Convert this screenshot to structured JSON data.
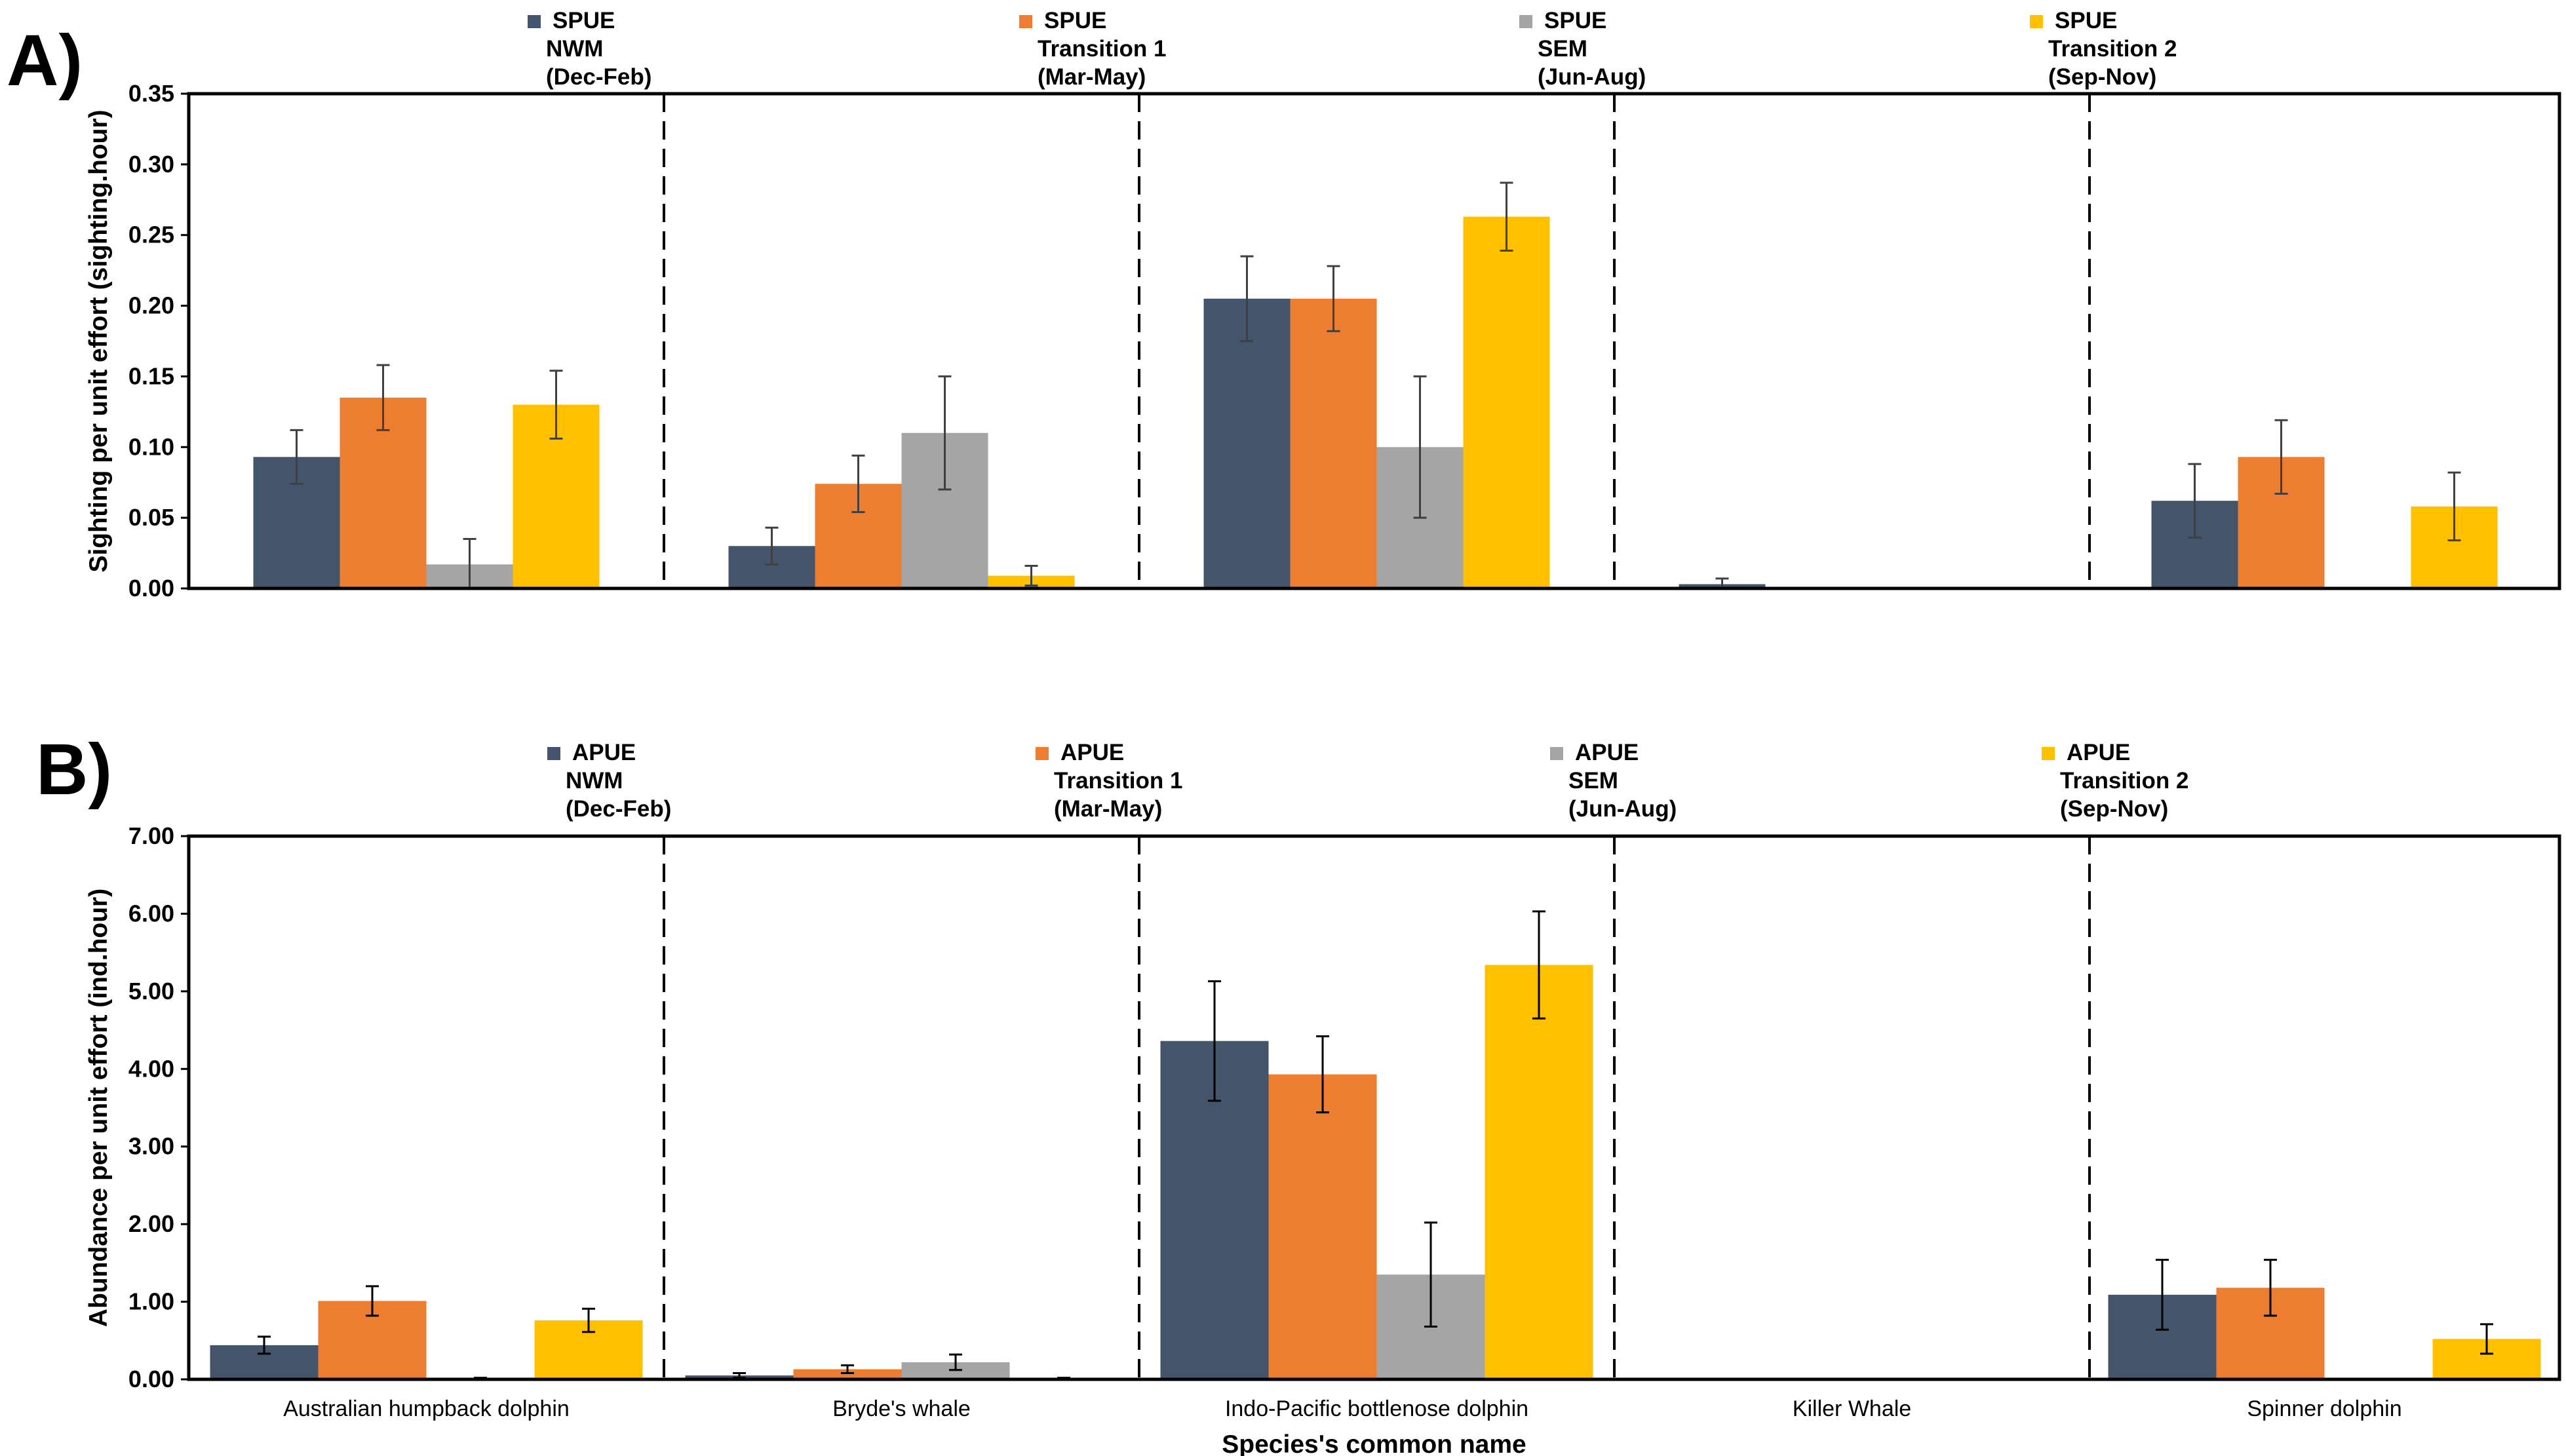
{
  "colors": {
    "NWM": "#44546A",
    "T1": "#ED7D31",
    "SEM": "#A5A5A5",
    "T2": "#FFC000",
    "axis": "#000000",
    "errbar": "#404040"
  },
  "chart_data": [
    {
      "type": "bar",
      "panel": "A)",
      "ylabel": "Sighting per unit effort (sighting.hour)",
      "xlabel": "",
      "ylim": [
        0,
        0.35
      ],
      "ytick_labels": [
        "0.00",
        "0.05",
        "0.10",
        "0.15",
        "0.20",
        "0.25",
        "0.30",
        "0.35"
      ],
      "yticks": [
        0,
        0.05,
        0.1,
        0.15,
        0.2,
        0.25,
        0.3,
        0.35
      ],
      "categories": [
        "Australian humpback dolphin",
        "Bryde's whale",
        "Indo-Pacific bottlenose dolphin",
        "Killer Whale",
        "Spinner dolphin"
      ],
      "show_category_labels": false,
      "legend": [
        {
          "key": "NWM",
          "line1": "SPUE",
          "line2": "NWM",
          "line3": "(Dec-Feb)"
        },
        {
          "key": "T1",
          "line1": "SPUE",
          "line2": "Transition 1",
          "line3": "(Mar-May)"
        },
        {
          "key": "SEM",
          "line1": "SPUE",
          "line2": "SEM",
          "line3": "(Jun-Aug)"
        },
        {
          "key": "T2",
          "line1": "SPUE",
          "line2": "Transition 2",
          "line3": "(Sep-Nov)"
        }
      ],
      "series": [
        {
          "name": "SPUE NWM (Dec-Feb)",
          "key": "NWM",
          "values": [
            0.093,
            0.03,
            0.205,
            0.003,
            0.062
          ],
          "errors": [
            0.019,
            0.013,
            0.03,
            0.004,
            0.026
          ]
        },
        {
          "name": "SPUE Transition 1 (Mar-May)",
          "key": "T1",
          "values": [
            0.135,
            0.074,
            0.205,
            0,
            0.093
          ],
          "errors": [
            0.023,
            0.02,
            0.023,
            0,
            0.026
          ]
        },
        {
          "name": "SPUE SEM (Jun-Aug)",
          "key": "SEM",
          "values": [
            0.017,
            0.11,
            0.1,
            0,
            0
          ],
          "errors": [
            0.018,
            0.04,
            0.05,
            0,
            0
          ]
        },
        {
          "name": "SPUE Transition 2 (Sep-Nov)",
          "key": "T2",
          "values": [
            0.13,
            0.009,
            0.263,
            0,
            0.058
          ],
          "errors": [
            0.024,
            0.007,
            0.024,
            0,
            0.024
          ]
        }
      ]
    },
    {
      "type": "bar",
      "panel": "B)",
      "ylabel": "Abundance per unit effort (ind.hour)",
      "xlabel": "Species's common name",
      "ylim": [
        0,
        7
      ],
      "ytick_labels": [
        "0.00",
        "1.00",
        "2.00",
        "3.00",
        "4.00",
        "5.00",
        "6.00",
        "7.00"
      ],
      "yticks": [
        0,
        1,
        2,
        3,
        4,
        5,
        6,
        7
      ],
      "categories": [
        "Australian humpback dolphin",
        "Bryde's whale",
        "Indo-Pacific bottlenose dolphin",
        "Killer Whale",
        "Spinner dolphin"
      ],
      "show_category_labels": true,
      "legend": [
        {
          "key": "NWM",
          "line1": "APUE",
          "line2": "NWM",
          "line3": "(Dec-Feb)"
        },
        {
          "key": "T1",
          "line1": "APUE",
          "line2": "Transition 1",
          "line3": "(Mar-May)"
        },
        {
          "key": "SEM",
          "line1": "APUE",
          "line2": "SEM",
          "line3": "(Jun-Aug)"
        },
        {
          "key": "T2",
          "line1": "APUE",
          "line2": "Transition 2",
          "line3": "(Sep-Nov)"
        }
      ],
      "series": [
        {
          "name": "APUE NWM (Dec-Feb)",
          "key": "NWM",
          "values": [
            0.44,
            0.05,
            4.36,
            0,
            1.09
          ],
          "errors": [
            0.11,
            0.03,
            0.77,
            0,
            0.45
          ]
        },
        {
          "name": "APUE Transition 1 (Mar-May)",
          "key": "T1",
          "values": [
            1.01,
            0.13,
            3.93,
            0,
            1.18
          ],
          "errors": [
            0.19,
            0.05,
            0.49,
            0,
            0.36
          ]
        },
        {
          "name": "APUE SEM (Jun-Aug)",
          "key": "SEM",
          "values": [
            0.01,
            0.22,
            1.35,
            0,
            0
          ],
          "errors": [
            0.01,
            0.1,
            0.67,
            0,
            0
          ]
        },
        {
          "name": "APUE Transition 2 (Sep-Nov)",
          "key": "T2",
          "values": [
            0.76,
            0.01,
            5.34,
            0,
            0.52
          ],
          "errors": [
            0.15,
            0.01,
            0.69,
            0,
            0.19
          ]
        }
      ]
    }
  ]
}
